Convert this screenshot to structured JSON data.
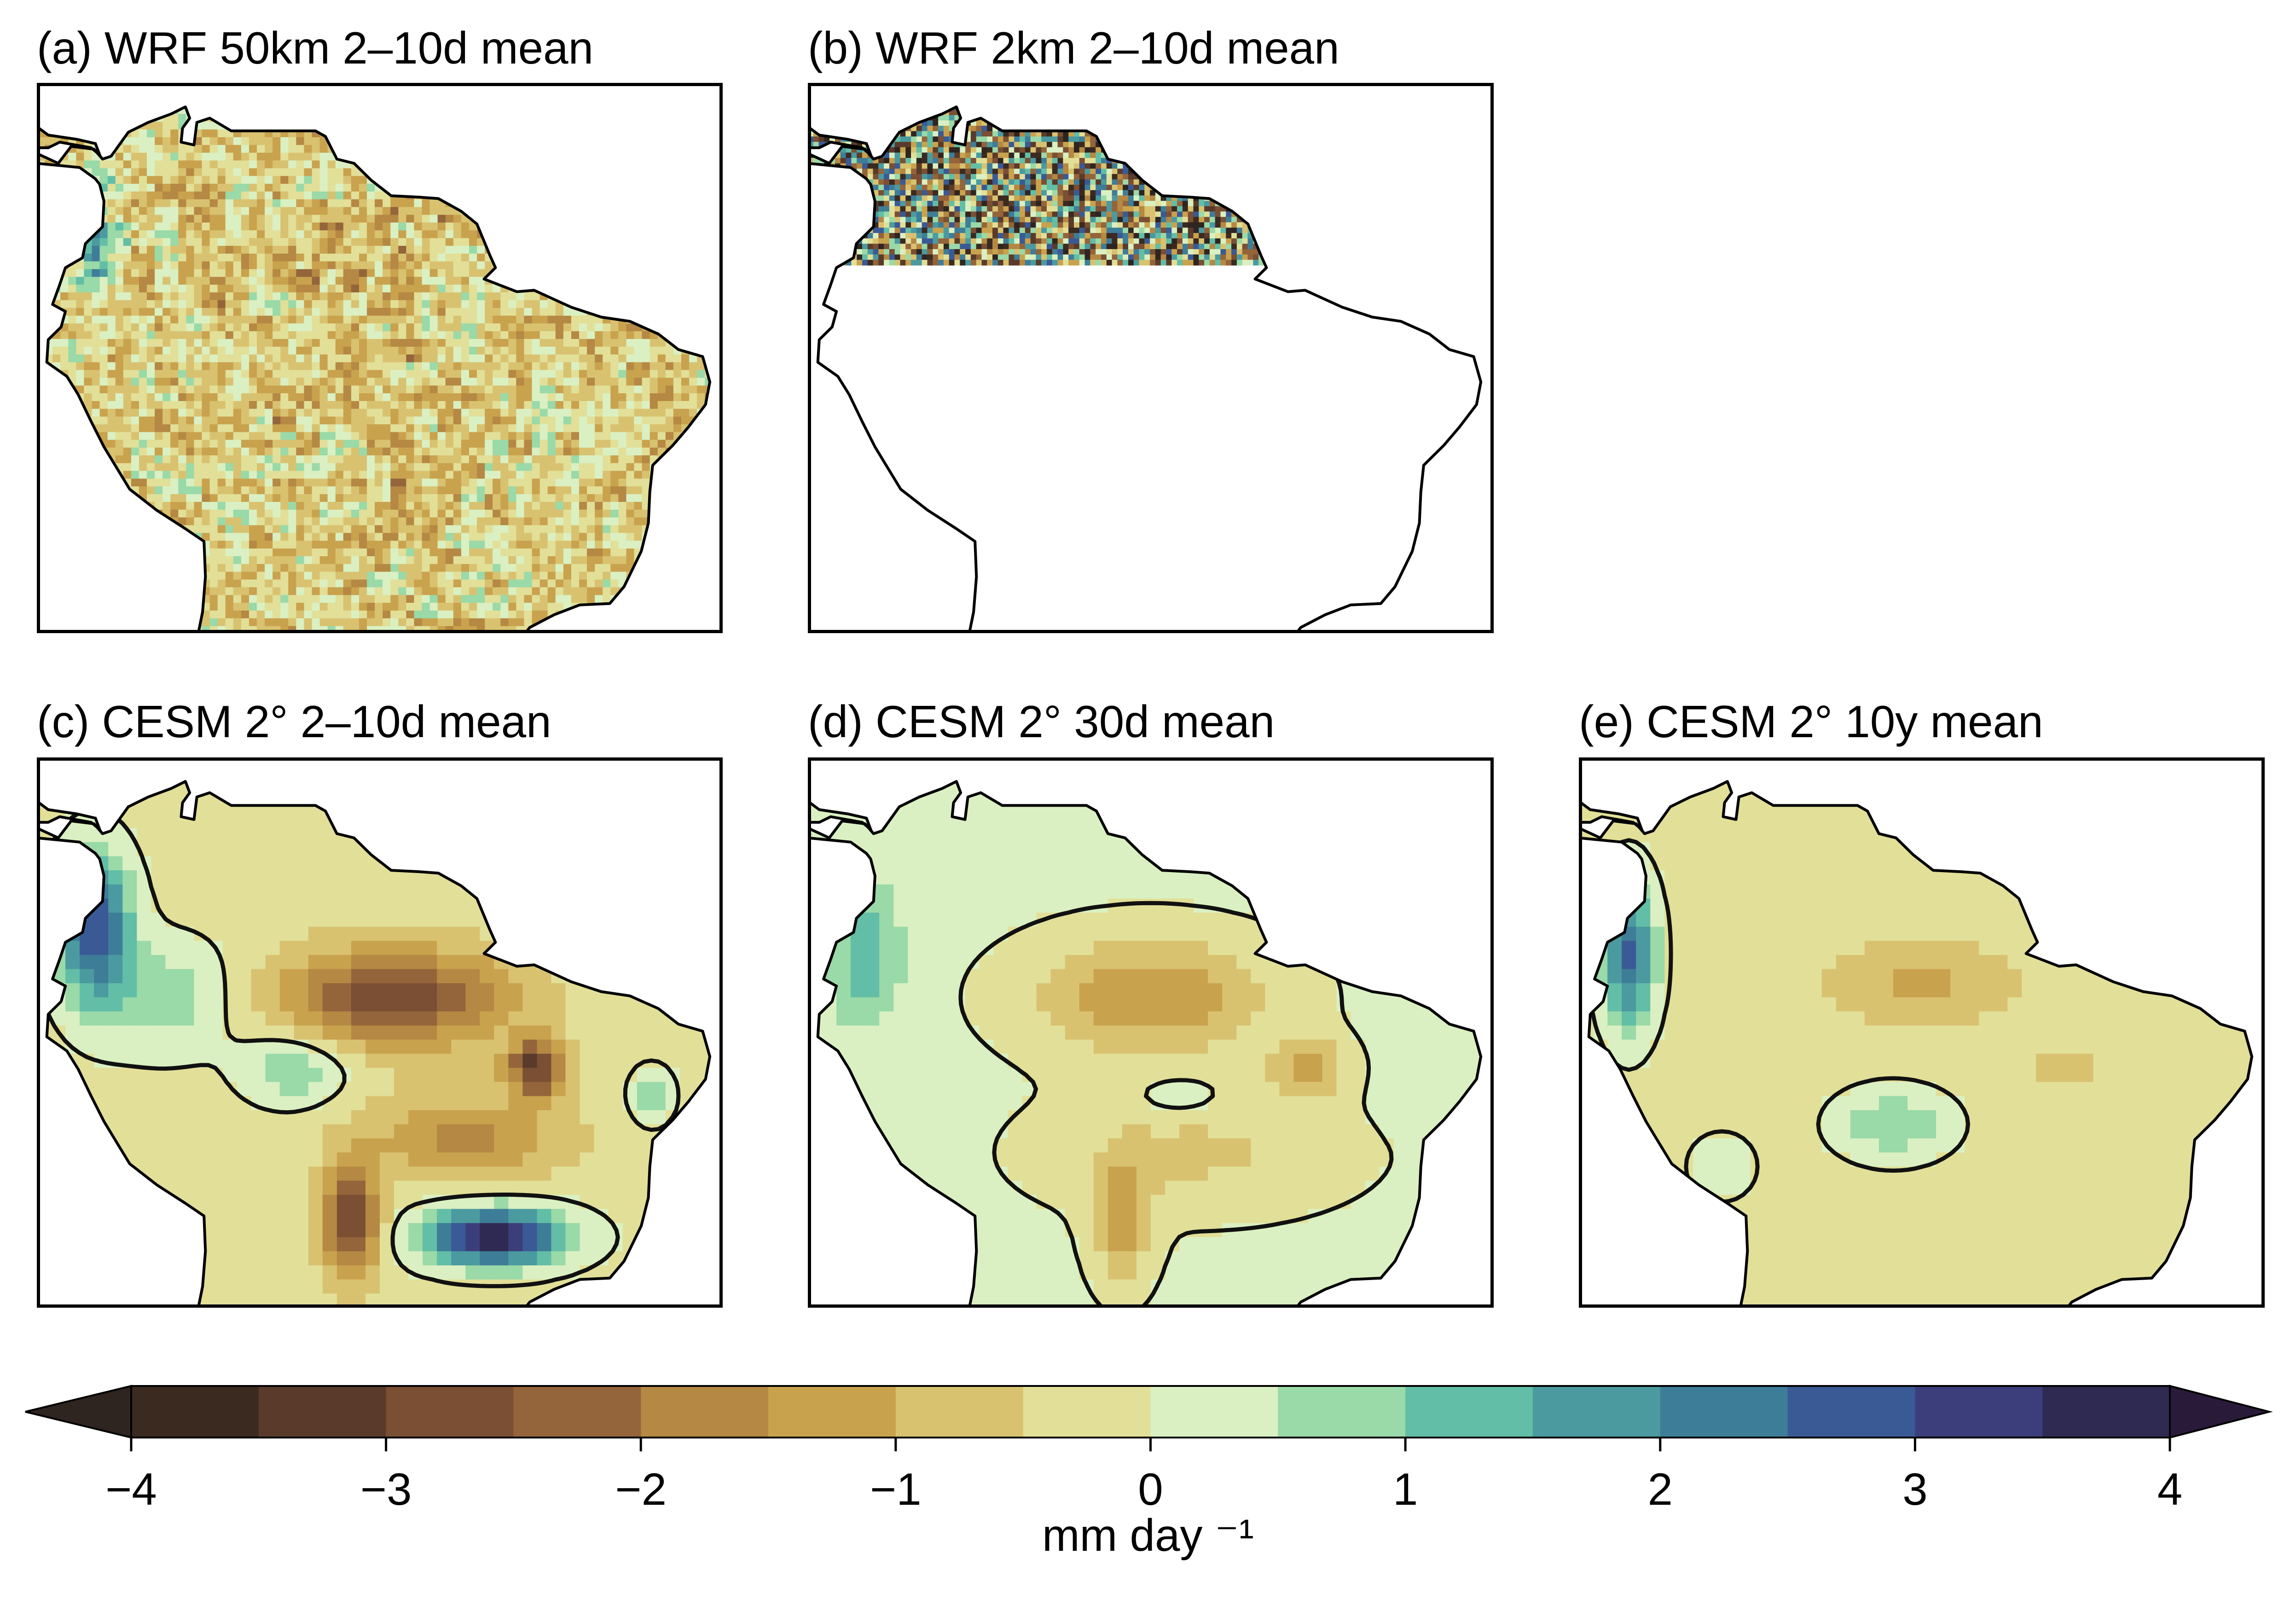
{
  "panels": [
    {
      "id": "a",
      "title": "(a) WRF 50km 2–10d mean",
      "pattern": "fine",
      "coverage": "full"
    },
    {
      "id": "b",
      "title": "(b) WRF 2km 2–10d mean",
      "pattern": "veryfine",
      "coverage": "north"
    },
    {
      "id": "c",
      "title": "(c) CESM 2° 2–10d mean",
      "pattern": "coarse-strong",
      "coverage": "full"
    },
    {
      "id": "d",
      "title": "(d) CESM 2° 30d mean",
      "pattern": "coarse-medium",
      "coverage": "full"
    },
    {
      "id": "e",
      "title": "(e) CESM 2° 10y mean",
      "pattern": "coarse-weak",
      "coverage": "full"
    }
  ],
  "colorbar": {
    "units": "mm day ⁻¹",
    "min": -4,
    "max": 4,
    "step": 0.5,
    "extend": "both",
    "tick_labels": [
      "−4",
      "−3",
      "−2",
      "−1",
      "0",
      "1",
      "2",
      "3",
      "4"
    ],
    "tick_values": [
      -4,
      -3,
      -2,
      -1,
      0,
      1,
      2,
      3,
      4
    ],
    "colors": [
      "#2f2520",
      "#3a2a20",
      "#5a3b2b",
      "#7a4f33",
      "#94643a",
      "#b58843",
      "#c9a24e",
      "#d8c270",
      "#e2df98",
      "#daf0c2",
      "#9ad9a8",
      "#62bea6",
      "#4b9aa0",
      "#3e7d98",
      "#3a5a95",
      "#3b3e7a",
      "#2f2a52",
      "#2a1a3a"
    ]
  },
  "map_extent": {
    "lon": [
      -82,
      -34
    ],
    "lat": [
      -25,
      14
    ]
  }
}
